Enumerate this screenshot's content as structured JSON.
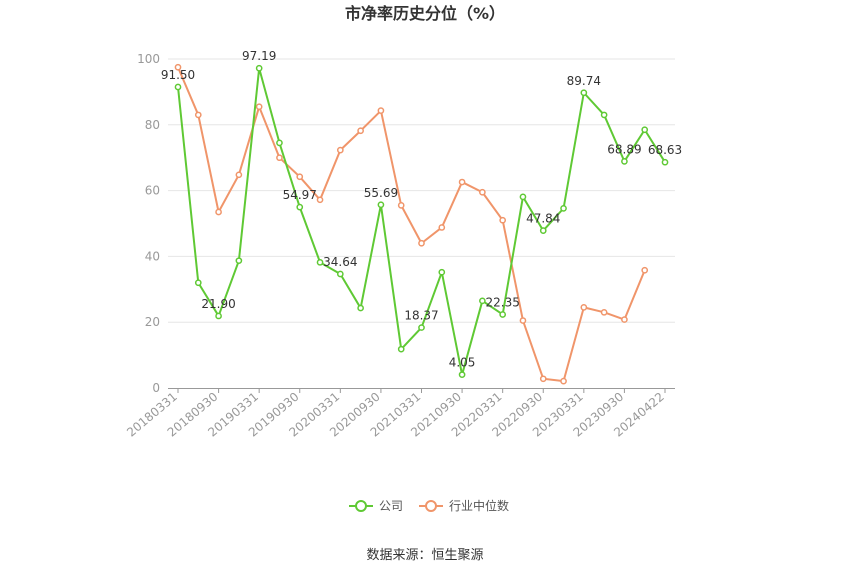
{
  "chart_data": {
    "type": "line",
    "title": "市净率历史分位（%）",
    "source": "数据来源：恒生聚源",
    "ylim": [
      0,
      100
    ],
    "yticks": [
      0,
      20,
      40,
      60,
      80,
      100
    ],
    "grid": true,
    "legend_position": "bottom",
    "x_tick_labels": [
      "20180331",
      "20180930",
      "20190331",
      "20190930",
      "20200331",
      "20200930",
      "20210331",
      "20210930",
      "20220331",
      "20220930",
      "20230331",
      "20230930",
      "20240422"
    ],
    "x": [
      "20180331",
      "20180630",
      "20180930",
      "20181231",
      "20190331",
      "20190630",
      "20190930",
      "20191231",
      "20200331",
      "20200630",
      "20200930",
      "20201231",
      "20210331",
      "20210630",
      "20210930",
      "20211231",
      "20220331",
      "20220630",
      "20220930",
      "20221231",
      "20230331",
      "20230630",
      "20230930",
      "20231231",
      "20240422"
    ],
    "series": [
      {
        "name": "公司",
        "color": "#5fc934",
        "values": [
          91.5,
          32,
          21.9,
          38.7,
          97.19,
          74.5,
          54.97,
          38.2,
          34.64,
          24.3,
          55.69,
          11.8,
          18.37,
          35.2,
          4.05,
          26.5,
          22.35,
          58.1,
          47.84,
          54.6,
          89.74,
          83,
          68.89,
          78.5,
          68.63
        ],
        "labels": {
          "0": "91.50",
          "2": "21.90",
          "4": "97.19",
          "6": "54.97",
          "8": "34.64",
          "10": "55.69",
          "12": "18.37",
          "14": "4.05",
          "16": "22.35",
          "18": "47.84",
          "20": "89.74",
          "22": "68.89",
          "24": "68.63"
        }
      },
      {
        "name": "行业中位数",
        "color": "#f0956a",
        "values": [
          97.5,
          83,
          53.5,
          64.8,
          85.5,
          70,
          64.2,
          57.2,
          72.3,
          78.2,
          84.3,
          55.5,
          44,
          48.8,
          62.6,
          59.5,
          51,
          20.5,
          2.8,
          2.1,
          24.5,
          23,
          20.8,
          35.8,
          null
        ]
      }
    ]
  }
}
